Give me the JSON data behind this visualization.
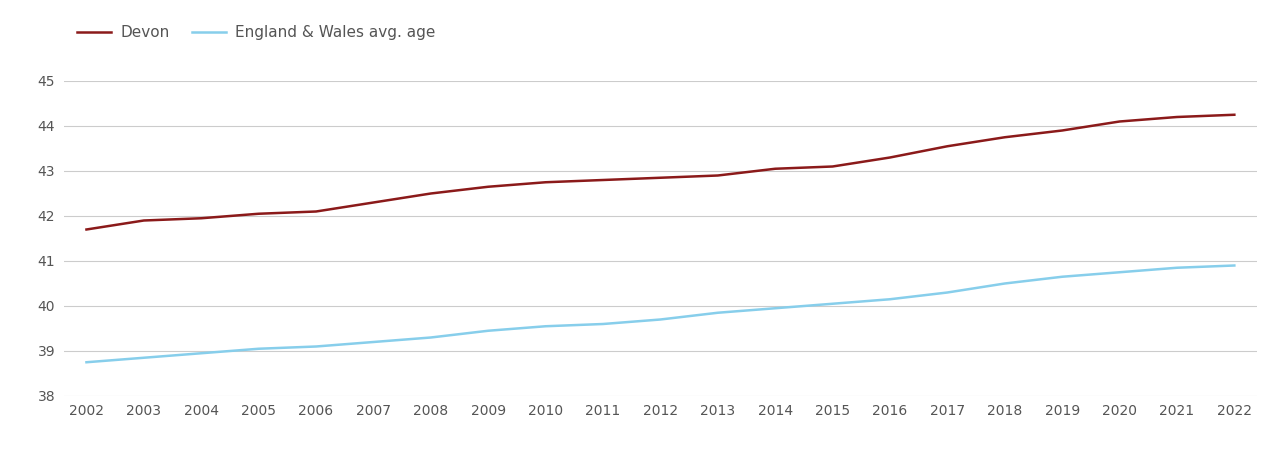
{
  "years": [
    2002,
    2003,
    2004,
    2005,
    2006,
    2007,
    2008,
    2009,
    2010,
    2011,
    2012,
    2013,
    2014,
    2015,
    2016,
    2017,
    2018,
    2019,
    2020,
    2021,
    2022
  ],
  "devon": [
    41.7,
    41.9,
    41.95,
    42.05,
    42.1,
    42.3,
    42.5,
    42.65,
    42.75,
    42.8,
    42.85,
    42.9,
    43.05,
    43.1,
    43.3,
    43.55,
    43.75,
    43.9,
    44.1,
    44.2,
    44.25
  ],
  "england_wales": [
    38.75,
    38.85,
    38.95,
    39.05,
    39.1,
    39.2,
    39.3,
    39.45,
    39.55,
    39.6,
    39.7,
    39.85,
    39.95,
    40.05,
    40.15,
    40.3,
    40.5,
    40.65,
    40.75,
    40.85,
    40.9
  ],
  "devon_color": "#8B1A1A",
  "england_wales_color": "#87CEEB",
  "devon_label": "Devon",
  "england_wales_label": "England & Wales avg. age",
  "ylim": [
    38,
    45
  ],
  "yticks": [
    38,
    39,
    40,
    41,
    42,
    43,
    44,
    45
  ],
  "background_color": "#ffffff",
  "grid_color": "#cccccc",
  "line_width": 1.8,
  "tick_fontsize": 10,
  "legend_fontsize": 11,
  "axis_label_color": "#555555"
}
